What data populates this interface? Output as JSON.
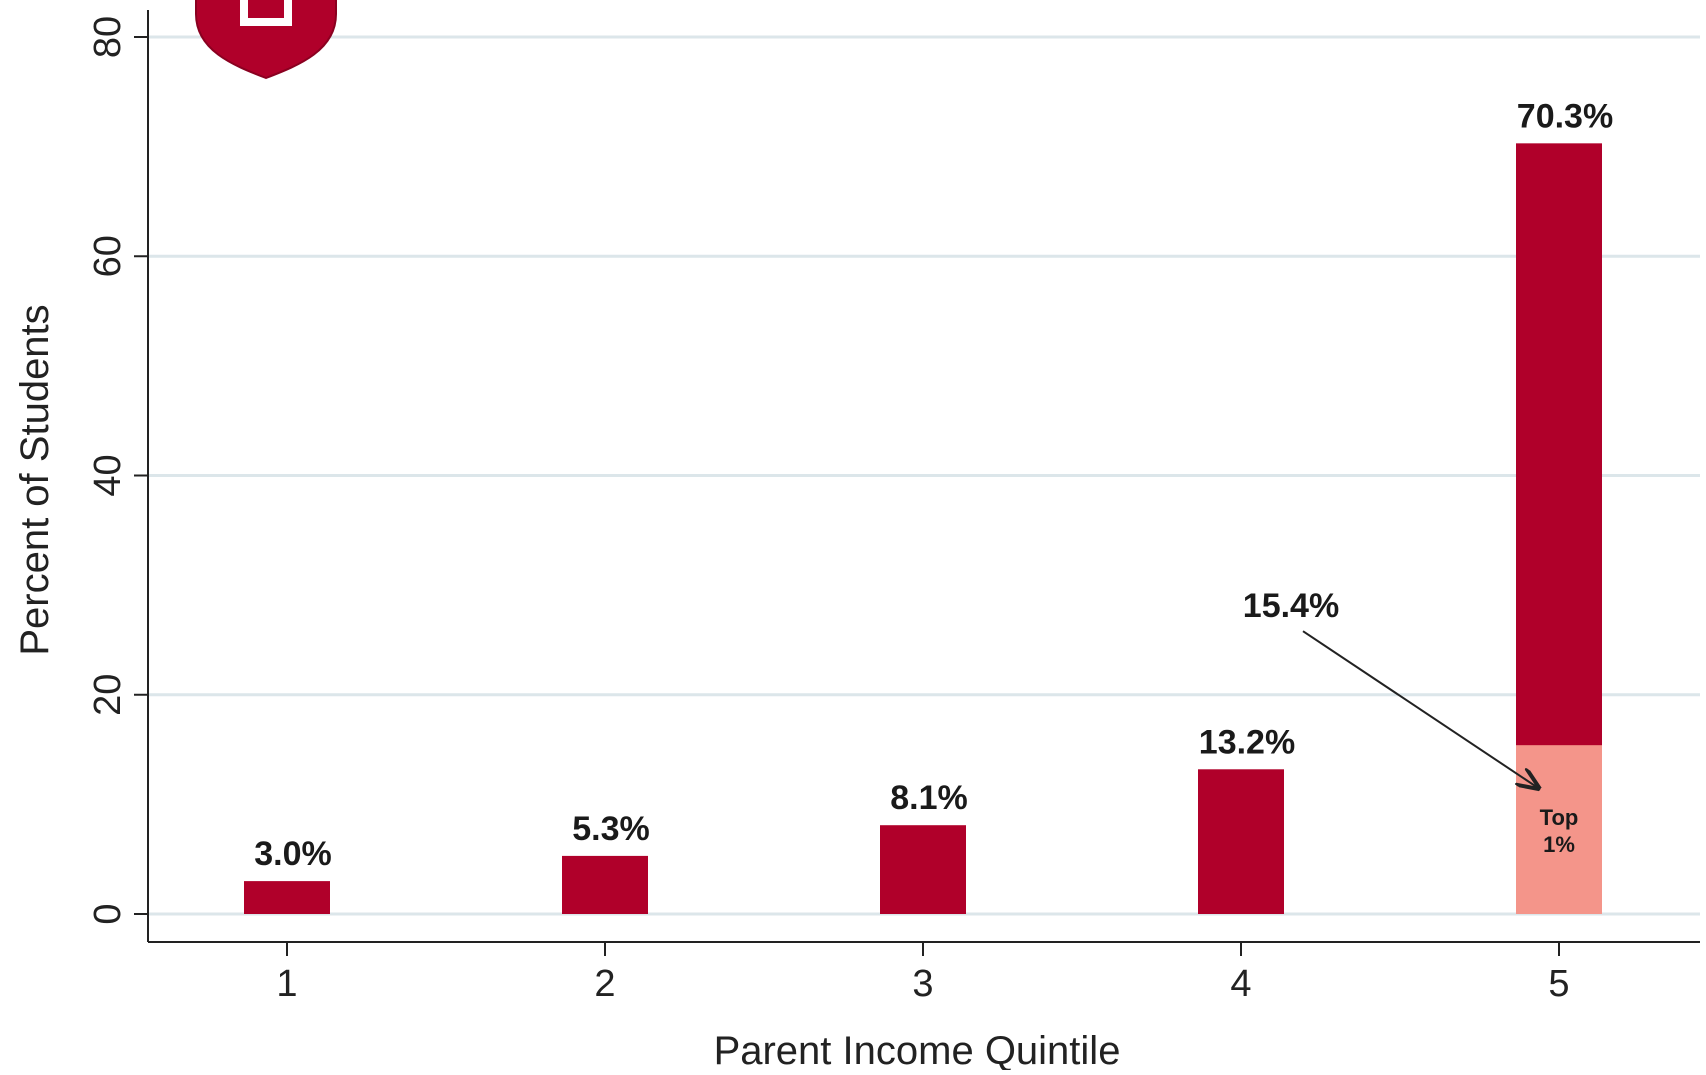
{
  "chart_data": {
    "type": "bar",
    "xlabel": "Parent Income Quintile",
    "ylabel": "Percent of Students",
    "categories": [
      "1",
      "2",
      "3",
      "4",
      "5"
    ],
    "ylim": [
      0,
      80
    ],
    "yticks": [
      0,
      20,
      40,
      60,
      80
    ],
    "series": [
      {
        "values": [
          3.0,
          5.3,
          8.1,
          13.2,
          70.3
        ],
        "labels": [
          "3.0%",
          "5.3%",
          "8.1%",
          "13.2%",
          "70.3%"
        ]
      }
    ],
    "highlight": {
      "category": "5",
      "value": 15.4,
      "label": "Top 1%",
      "annotation": "15.4%",
      "color": "#f4958a"
    },
    "bar_color": "#b0002a",
    "grid": true,
    "grid_color": "#dce6ea",
    "logo": {
      "name": "red-shield-logo",
      "color": "#b0002a"
    }
  }
}
